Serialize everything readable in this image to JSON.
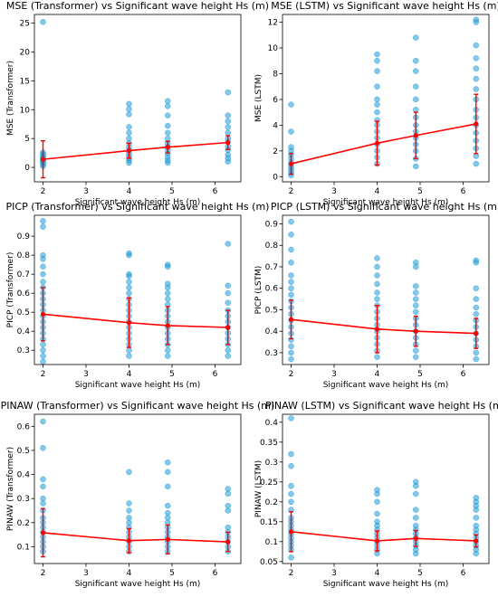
{
  "chart_data": [
    {
      "id": "mse-transformer",
      "type": "scatter",
      "title": "MSE (Transformer) vs Significant wave height Hs (m)",
      "xlabel": "Significant wave height Hs (m)",
      "ylabel": "MSE (Transformer)",
      "xlim": [
        1.8,
        6.6
      ],
      "ylim": [
        -2.5,
        26.5
      ],
      "xticks": [
        2,
        3,
        4,
        5,
        6
      ],
      "yticks": [
        0,
        5,
        10,
        15,
        20,
        25
      ],
      "scatter_color": "#1f9bd7",
      "line_color": "#ff0000",
      "series": [
        {
          "x": 2.0,
          "values": [
            0.2,
            0.5,
            0.8,
            1.0,
            1.2,
            1.4,
            1.6,
            1.8,
            2.0,
            2.3,
            2.6,
            25.2
          ]
        },
        {
          "x": 4.0,
          "values": [
            0.8,
            1.2,
            1.6,
            2.0,
            2.5,
            3.0,
            3.5,
            4.2,
            5.0,
            6.0,
            7.0,
            9.2,
            10.1,
            11.0
          ]
        },
        {
          "x": 4.9,
          "values": [
            0.8,
            1.2,
            1.8,
            2.4,
            3.0,
            3.6,
            4.2,
            5.0,
            6.0,
            7.2,
            9.0,
            10.6,
            11.5
          ]
        },
        {
          "x": 6.3,
          "values": [
            1.0,
            1.6,
            2.2,
            3.0,
            3.6,
            4.4,
            5.0,
            6.0,
            7.0,
            8.0,
            9.0,
            13.0
          ]
        }
      ],
      "trend": {
        "x": [
          2.0,
          4.0,
          4.9,
          6.3
        ],
        "y": [
          1.4,
          2.9,
          3.5,
          4.3
        ],
        "err": [
          3.2,
          1.3,
          1.0,
          1.2
        ]
      }
    },
    {
      "id": "mse-lstm",
      "type": "scatter",
      "title": "MSE (LSTM) vs Significant wave height Hs (m)",
      "xlabel": "Significant wave height Hs (m)",
      "ylabel": "MSE (LSTM)",
      "xlim": [
        1.8,
        6.6
      ],
      "ylim": [
        -0.4,
        12.6
      ],
      "xticks": [
        2,
        3,
        4,
        5,
        6
      ],
      "yticks": [
        0,
        2,
        4,
        6,
        8,
        10,
        12
      ],
      "scatter_color": "#1f9bd7",
      "line_color": "#ff0000",
      "series": [
        {
          "x": 2.0,
          "values": [
            0.1,
            0.3,
            0.5,
            0.7,
            0.9,
            1.1,
            1.4,
            1.7,
            2.0,
            2.3,
            3.5,
            5.6
          ]
        },
        {
          "x": 4.0,
          "values": [
            1.0,
            1.5,
            2.0,
            2.5,
            3.0,
            3.5,
            4.0,
            4.4,
            5.0,
            5.6,
            6.0,
            7.0,
            8.2,
            9.0,
            9.5
          ]
        },
        {
          "x": 4.9,
          "values": [
            0.8,
            1.4,
            2.0,
            2.5,
            3.0,
            3.5,
            4.0,
            4.6,
            5.2,
            6.0,
            7.0,
            8.2,
            9.0,
            10.8
          ]
        },
        {
          "x": 6.3,
          "values": [
            1.0,
            1.6,
            2.2,
            2.8,
            3.4,
            4.0,
            4.6,
            5.2,
            6.0,
            6.8,
            7.6,
            8.4,
            9.2,
            10.2,
            12.0,
            12.2
          ]
        }
      ],
      "trend": {
        "x": [
          2.0,
          4.0,
          4.9,
          6.3
        ],
        "y": [
          1.0,
          2.6,
          3.2,
          4.1
        ],
        "err": [
          0.8,
          1.7,
          1.8,
          2.3
        ]
      }
    },
    {
      "id": "picp-transformer",
      "type": "scatter",
      "title": "PICP (Transformer) vs Significant wave height Hs (m)",
      "xlabel": "Significant wave height Hs (m)",
      "ylabel": "PICP (Transformer)",
      "xlim": [
        1.8,
        6.6
      ],
      "ylim": [
        0.225,
        1.01
      ],
      "xticks": [
        2,
        3,
        4,
        5,
        6
      ],
      "yticks": [
        0.3,
        0.4,
        0.5,
        0.6,
        0.7,
        0.8,
        0.9
      ],
      "scatter_color": "#1f9bd7",
      "line_color": "#ff0000",
      "series": [
        {
          "x": 2.0,
          "values": [
            0.24,
            0.27,
            0.3,
            0.33,
            0.36,
            0.39,
            0.42,
            0.45,
            0.48,
            0.51,
            0.54,
            0.57,
            0.6,
            0.63,
            0.66,
            0.7,
            0.74,
            0.78,
            0.8,
            0.95,
            0.98
          ]
        },
        {
          "x": 4.0,
          "values": [
            0.27,
            0.3,
            0.33,
            0.36,
            0.39,
            0.42,
            0.45,
            0.48,
            0.51,
            0.54,
            0.57,
            0.6,
            0.63,
            0.66,
            0.69,
            0.7,
            0.8,
            0.81
          ]
        },
        {
          "x": 4.9,
          "values": [
            0.27,
            0.3,
            0.33,
            0.36,
            0.39,
            0.42,
            0.45,
            0.48,
            0.51,
            0.54,
            0.57,
            0.6,
            0.63,
            0.65,
            0.74,
            0.75
          ]
        },
        {
          "x": 6.3,
          "values": [
            0.27,
            0.3,
            0.33,
            0.36,
            0.39,
            0.42,
            0.45,
            0.48,
            0.51,
            0.55,
            0.6,
            0.64,
            0.86
          ]
        }
      ],
      "trend": {
        "x": [
          2.0,
          4.0,
          4.9,
          6.3
        ],
        "y": [
          0.49,
          0.445,
          0.43,
          0.42
        ],
        "err": [
          0.14,
          0.13,
          0.1,
          0.09
        ]
      }
    },
    {
      "id": "picp-lstm",
      "type": "scatter",
      "title": "PICP (LSTM) vs Significant wave height Hs (m)",
      "xlabel": "Significant wave height Hs (m)",
      "ylabel": "PICP (LSTM)",
      "xlim": [
        1.8,
        6.6
      ],
      "ylim": [
        0.245,
        0.94
      ],
      "xticks": [
        2,
        3,
        4,
        5,
        6
      ],
      "yticks": [
        0.3,
        0.4,
        0.5,
        0.6,
        0.7,
        0.8,
        0.9
      ],
      "scatter_color": "#1f9bd7",
      "line_color": "#ff0000",
      "series": [
        {
          "x": 2.0,
          "values": [
            0.27,
            0.3,
            0.33,
            0.36,
            0.39,
            0.42,
            0.45,
            0.48,
            0.51,
            0.54,
            0.57,
            0.6,
            0.63,
            0.66,
            0.72,
            0.78,
            0.85,
            0.91
          ]
        },
        {
          "x": 4.0,
          "values": [
            0.28,
            0.31,
            0.34,
            0.37,
            0.4,
            0.43,
            0.46,
            0.49,
            0.52,
            0.55,
            0.58,
            0.62,
            0.66,
            0.7,
            0.74
          ]
        },
        {
          "x": 4.9,
          "values": [
            0.28,
            0.31,
            0.34,
            0.37,
            0.4,
            0.43,
            0.46,
            0.49,
            0.52,
            0.55,
            0.58,
            0.61,
            0.7,
            0.72
          ]
        },
        {
          "x": 6.3,
          "values": [
            0.27,
            0.3,
            0.33,
            0.36,
            0.39,
            0.42,
            0.45,
            0.48,
            0.51,
            0.55,
            0.6,
            0.72,
            0.73
          ]
        }
      ],
      "trend": {
        "x": [
          2.0,
          4.0,
          4.9,
          6.3
        ],
        "y": [
          0.455,
          0.41,
          0.4,
          0.39
        ],
        "err": [
          0.09,
          0.11,
          0.07,
          0.07
        ]
      }
    },
    {
      "id": "pinaw-transformer",
      "type": "scatter",
      "title": "PINAW (Transformer) vs Significant wave height Hs (m)",
      "xlabel": "Significant wave height Hs (m)",
      "ylabel": "PINAW (Transformer)",
      "xlim": [
        1.8,
        6.6
      ],
      "ylim": [
        0.03,
        0.65
      ],
      "xticks": [
        2,
        3,
        4,
        5,
        6
      ],
      "yticks": [
        0.1,
        0.2,
        0.3,
        0.4,
        0.5,
        0.6
      ],
      "scatter_color": "#1f9bd7",
      "line_color": "#ff0000",
      "series": [
        {
          "x": 2.0,
          "values": [
            0.08,
            0.1,
            0.12,
            0.14,
            0.16,
            0.18,
            0.2,
            0.22,
            0.25,
            0.28,
            0.3,
            0.35,
            0.38,
            0.51,
            0.62
          ]
        },
        {
          "x": 4.0,
          "values": [
            0.08,
            0.1,
            0.12,
            0.14,
            0.16,
            0.18,
            0.2,
            0.22,
            0.25,
            0.28,
            0.41
          ]
        },
        {
          "x": 4.9,
          "values": [
            0.08,
            0.1,
            0.12,
            0.14,
            0.16,
            0.18,
            0.2,
            0.22,
            0.24,
            0.27,
            0.35,
            0.41,
            0.45
          ]
        },
        {
          "x": 6.3,
          "values": [
            0.08,
            0.1,
            0.12,
            0.14,
            0.16,
            0.18,
            0.25,
            0.27,
            0.32,
            0.34
          ]
        }
      ],
      "trend": {
        "x": [
          2.0,
          4.0,
          4.9,
          6.3
        ],
        "y": [
          0.158,
          0.125,
          0.13,
          0.12
        ],
        "err": [
          0.1,
          0.05,
          0.06,
          0.04
        ]
      }
    },
    {
      "id": "pinaw-lstm",
      "type": "scatter",
      "title": "PINAW (LSTM) vs Significant wave height Hs (m)",
      "xlabel": "Significant wave height Hs (m)",
      "ylabel": "PINAW (LSTM)",
      "xlim": [
        1.8,
        6.6
      ],
      "ylim": [
        0.045,
        0.42
      ],
      "xticks": [
        2,
        3,
        4,
        5,
        6
      ],
      "yticks": [
        0.05,
        0.1,
        0.15,
        0.2,
        0.25,
        0.3,
        0.35,
        0.4
      ],
      "scatter_color": "#1f9bd7",
      "line_color": "#ff0000",
      "series": [
        {
          "x": 2.0,
          "values": [
            0.06,
            0.08,
            0.09,
            0.1,
            0.11,
            0.12,
            0.13,
            0.14,
            0.15,
            0.16,
            0.18,
            0.2,
            0.22,
            0.24,
            0.29,
            0.32,
            0.41
          ]
        },
        {
          "x": 4.0,
          "values": [
            0.07,
            0.08,
            0.09,
            0.1,
            0.11,
            0.12,
            0.13,
            0.14,
            0.15,
            0.17,
            0.2,
            0.22,
            0.23
          ]
        },
        {
          "x": 4.9,
          "values": [
            0.07,
            0.08,
            0.09,
            0.1,
            0.11,
            0.12,
            0.13,
            0.14,
            0.16,
            0.18,
            0.22,
            0.24,
            0.25
          ]
        },
        {
          "x": 6.3,
          "values": [
            0.07,
            0.08,
            0.09,
            0.1,
            0.11,
            0.12,
            0.13,
            0.14,
            0.16,
            0.18,
            0.19,
            0.2,
            0.21
          ]
        }
      ],
      "trend": {
        "x": [
          2.0,
          4.0,
          4.9,
          6.3
        ],
        "y": [
          0.125,
          0.102,
          0.108,
          0.102
        ],
        "err": [
          0.05,
          0.025,
          0.02,
          0.015
        ]
      }
    }
  ]
}
